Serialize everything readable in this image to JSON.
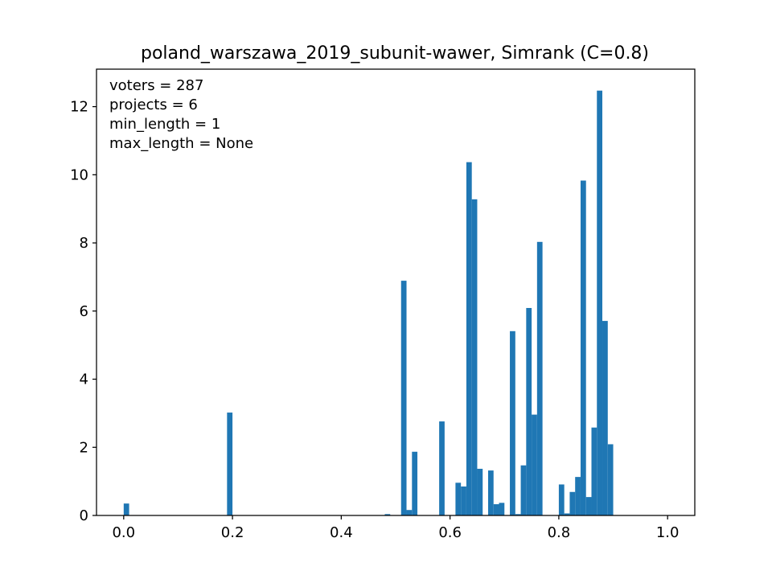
{
  "chart_data": {
    "type": "bar",
    "title": "poland_warszawa_2019_subunit-wawer, Simrank (C=0.8)",
    "xlabel": "",
    "ylabel": "",
    "xlim": [
      -0.05,
      1.05
    ],
    "ylim": [
      0,
      13.1
    ],
    "xticks": [
      0.0,
      0.2,
      0.4,
      0.6,
      0.8,
      1.0
    ],
    "xtick_labels": [
      "0.0",
      "0.2",
      "0.4",
      "0.6",
      "0.8",
      "1.0"
    ],
    "yticks": [
      0,
      2,
      4,
      6,
      8,
      10,
      12
    ],
    "ytick_labels": [
      "0",
      "2",
      "4",
      "6",
      "8",
      "10",
      "12"
    ],
    "bin_width": 0.01,
    "bars": [
      {
        "x": 0.0,
        "value": 0.35
      },
      {
        "x": 0.19,
        "value": 3.02
      },
      {
        "x": 0.48,
        "value": 0.04
      },
      {
        "x": 0.51,
        "value": 6.89
      },
      {
        "x": 0.52,
        "value": 0.16
      },
      {
        "x": 0.53,
        "value": 1.87
      },
      {
        "x": 0.58,
        "value": 2.76
      },
      {
        "x": 0.61,
        "value": 0.96
      },
      {
        "x": 0.62,
        "value": 0.85
      },
      {
        "x": 0.63,
        "value": 10.37
      },
      {
        "x": 0.64,
        "value": 9.28
      },
      {
        "x": 0.65,
        "value": 1.37
      },
      {
        "x": 0.67,
        "value": 1.32
      },
      {
        "x": 0.68,
        "value": 0.33
      },
      {
        "x": 0.69,
        "value": 0.37
      },
      {
        "x": 0.71,
        "value": 5.41
      },
      {
        "x": 0.72,
        "value": 0.04
      },
      {
        "x": 0.73,
        "value": 1.47
      },
      {
        "x": 0.74,
        "value": 6.09
      },
      {
        "x": 0.75,
        "value": 2.96
      },
      {
        "x": 0.76,
        "value": 8.03
      },
      {
        "x": 0.8,
        "value": 0.91
      },
      {
        "x": 0.81,
        "value": 0.06
      },
      {
        "x": 0.82,
        "value": 0.69
      },
      {
        "x": 0.83,
        "value": 1.13
      },
      {
        "x": 0.84,
        "value": 9.83
      },
      {
        "x": 0.85,
        "value": 0.54
      },
      {
        "x": 0.86,
        "value": 2.58
      },
      {
        "x": 0.87,
        "value": 12.47
      },
      {
        "x": 0.88,
        "value": 5.71
      },
      {
        "x": 0.89,
        "value": 2.09
      }
    ],
    "bar_color": "#1f77b4",
    "grid": false,
    "legend": "none",
    "annotations": [
      "voters = 287",
      "projects = 6",
      "min_length = 1",
      "max_length = None"
    ]
  }
}
